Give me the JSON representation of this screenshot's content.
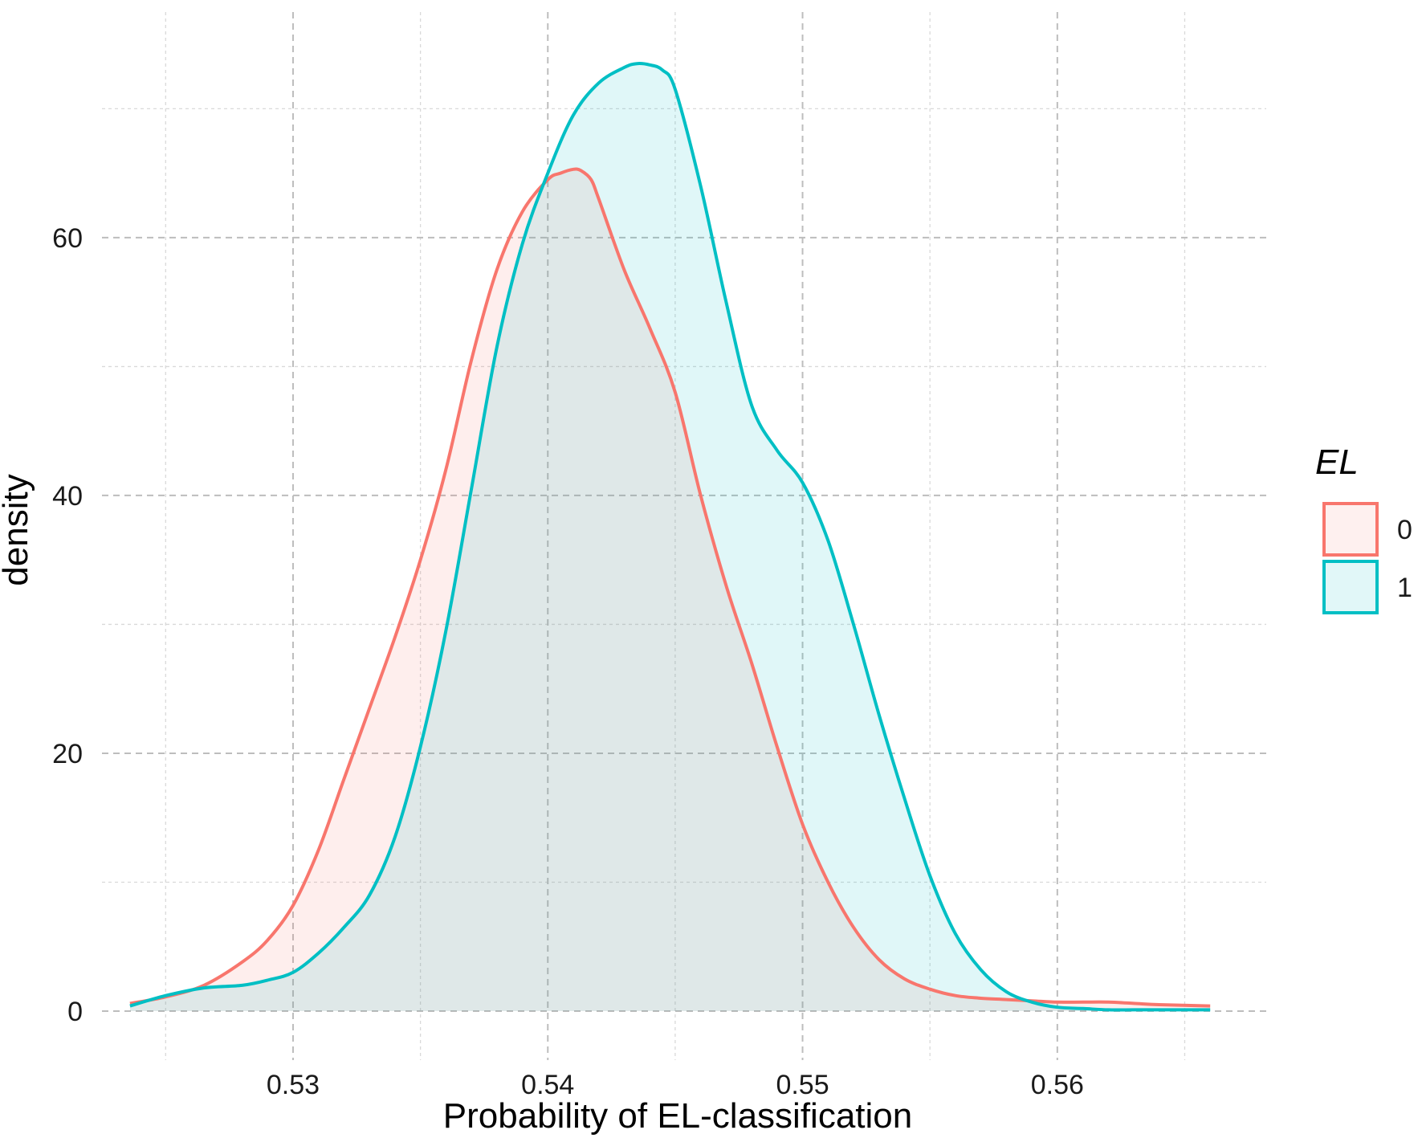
{
  "chart_data": {
    "type": "area",
    "xlabel": "Probability of EL-classification",
    "ylabel": "density",
    "xlim": [
      0.5225,
      0.5682
    ],
    "ylim": [
      -3.8,
      77.5
    ],
    "x_ticks": [
      0.53,
      0.54,
      0.55,
      0.56
    ],
    "x_tick_labels": [
      "0.53",
      "0.54",
      "0.55",
      "0.56"
    ],
    "x_minor_ticks": [
      0.525,
      0.535,
      0.545,
      0.555,
      0.565
    ],
    "y_ticks": [
      0,
      20,
      40,
      60
    ],
    "y_tick_labels": [
      "0",
      "20",
      "40",
      "60"
    ],
    "y_minor_ticks": [
      10,
      30,
      50,
      70
    ],
    "grid": true,
    "legend": {
      "title": "EL",
      "position": "right"
    },
    "series": [
      {
        "name": "0",
        "color": "#F8766D",
        "fill": "#FEF0EF",
        "x": [
          0.5236,
          0.525,
          0.5265,
          0.528,
          0.529,
          0.53,
          0.531,
          0.532,
          0.533,
          0.534,
          0.535,
          0.536,
          0.537,
          0.538,
          0.539,
          0.54,
          0.5405,
          0.541,
          0.5413,
          0.5417,
          0.542,
          0.543,
          0.544,
          0.545,
          0.546,
          0.547,
          0.548,
          0.549,
          0.55,
          0.551,
          0.552,
          0.553,
          0.554,
          0.555,
          0.556,
          0.557,
          0.558,
          0.559,
          0.56,
          0.561,
          0.562,
          0.563,
          0.564,
          0.566
        ],
        "y": [
          0.6,
          1.1,
          2.0,
          3.8,
          5.5,
          8.2,
          12.5,
          18.0,
          23.5,
          29.0,
          35.0,
          42.0,
          50.5,
          57.5,
          62.0,
          64.5,
          65.0,
          65.3,
          65.2,
          64.5,
          63.0,
          57.5,
          53.0,
          48.0,
          40.0,
          33.0,
          27.0,
          20.5,
          14.5,
          10.0,
          6.5,
          4.0,
          2.5,
          1.7,
          1.2,
          1.0,
          0.9,
          0.8,
          0.7,
          0.7,
          0.7,
          0.6,
          0.5,
          0.4
        ]
      },
      {
        "name": "1",
        "color": "#00BFC4",
        "fill": "#E1F7F8",
        "x": [
          0.5236,
          0.525,
          0.5265,
          0.528,
          0.529,
          0.53,
          0.531,
          0.532,
          0.533,
          0.534,
          0.535,
          0.536,
          0.537,
          0.538,
          0.539,
          0.54,
          0.541,
          0.542,
          0.543,
          0.5435,
          0.544,
          0.5445,
          0.545,
          0.546,
          0.547,
          0.548,
          0.549,
          0.55,
          0.551,
          0.552,
          0.553,
          0.554,
          0.555,
          0.556,
          0.557,
          0.558,
          0.559,
          0.56,
          0.561,
          0.562,
          0.563,
          0.564,
          0.566
        ],
        "y": [
          0.4,
          1.2,
          1.8,
          2.0,
          2.4,
          3.0,
          4.5,
          6.5,
          9.0,
          13.5,
          20.5,
          29.5,
          40.5,
          51.5,
          59.5,
          65.0,
          69.5,
          72.0,
          73.2,
          73.5,
          73.4,
          73.0,
          71.5,
          64.0,
          55.0,
          47.0,
          43.5,
          41.0,
          36.5,
          30.0,
          23.0,
          16.5,
          10.5,
          6.0,
          3.2,
          1.5,
          0.7,
          0.3,
          0.2,
          0.1,
          0.1,
          0.1,
          0.1
        ]
      }
    ]
  }
}
